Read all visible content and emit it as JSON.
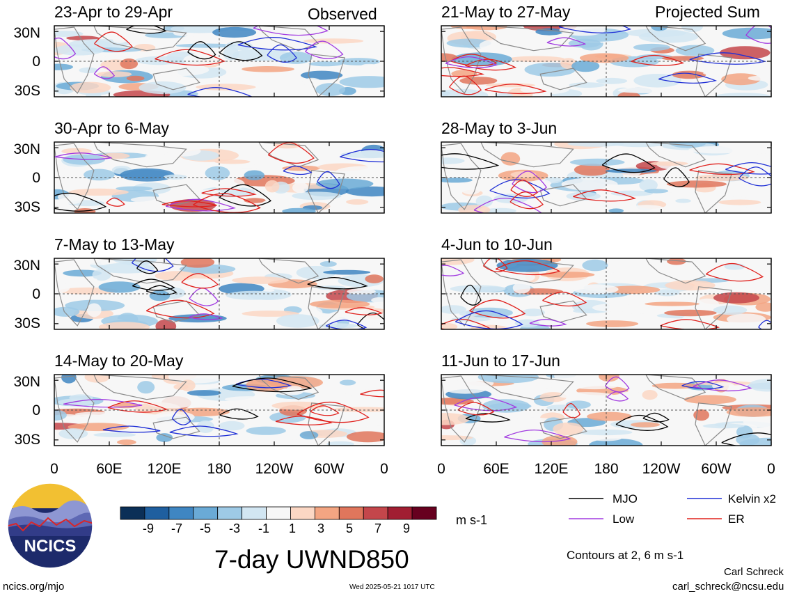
{
  "header": {
    "left_label": "Observed",
    "right_label": "Projected Sum"
  },
  "chart_data": {
    "type": "heatmap",
    "title": "7-day UWND850",
    "units": "m s-1",
    "variable": "850 hPa zonal wind anomaly",
    "panels": [
      {
        "column": "Observed",
        "label": "23-Apr to 29-Apr"
      },
      {
        "column": "Observed",
        "label": "30-Apr to 6-May"
      },
      {
        "column": "Observed",
        "label": "7-May to 13-May"
      },
      {
        "column": "Observed",
        "label": "14-May to 20-May"
      },
      {
        "column": "Projected Sum",
        "label": "21-May to 27-May"
      },
      {
        "column": "Projected Sum",
        "label": "28-May to 3-Jun"
      },
      {
        "column": "Projected Sum",
        "label": "4-Jun to 10-Jun"
      },
      {
        "column": "Projected Sum",
        "label": "11-Jun to 17-Jun"
      }
    ],
    "lat_ticks": [
      "30N",
      "0",
      "30S"
    ],
    "lon_ticks": [
      "0",
      "60E",
      "120E",
      "180",
      "120W",
      "60W",
      "0"
    ],
    "colorbar": {
      "ticks": [
        "-9",
        "-7",
        "-5",
        "-3",
        "-1",
        "1",
        "3",
        "5",
        "7",
        "9"
      ],
      "colors": [
        "#0b2f57",
        "#1f5f9f",
        "#3f86c2",
        "#6aaad6",
        "#9ecae6",
        "#d2e6f2",
        "#f7f7f7",
        "#fbd7c4",
        "#f3a582",
        "#e0765c",
        "#c4464b",
        "#a11e32",
        "#67001f"
      ]
    },
    "contours": "Contours at 2, 6 m s-1",
    "legend": [
      {
        "name": "MJO",
        "color": "#000000"
      },
      {
        "name": "Kelvin x2",
        "color": "#1f2fd6"
      },
      {
        "name": "Low",
        "color": "#a13ae0"
      },
      {
        "name": "ER",
        "color": "#e0201c"
      }
    ]
  },
  "footer": {
    "logo_text": "NCICS",
    "url": "ncics.org/mjo",
    "timestamp": "Wed 2025-05-21 1017 UTC",
    "author": "Carl Schreck",
    "email": "carl_schreck@ncsu.edu"
  }
}
